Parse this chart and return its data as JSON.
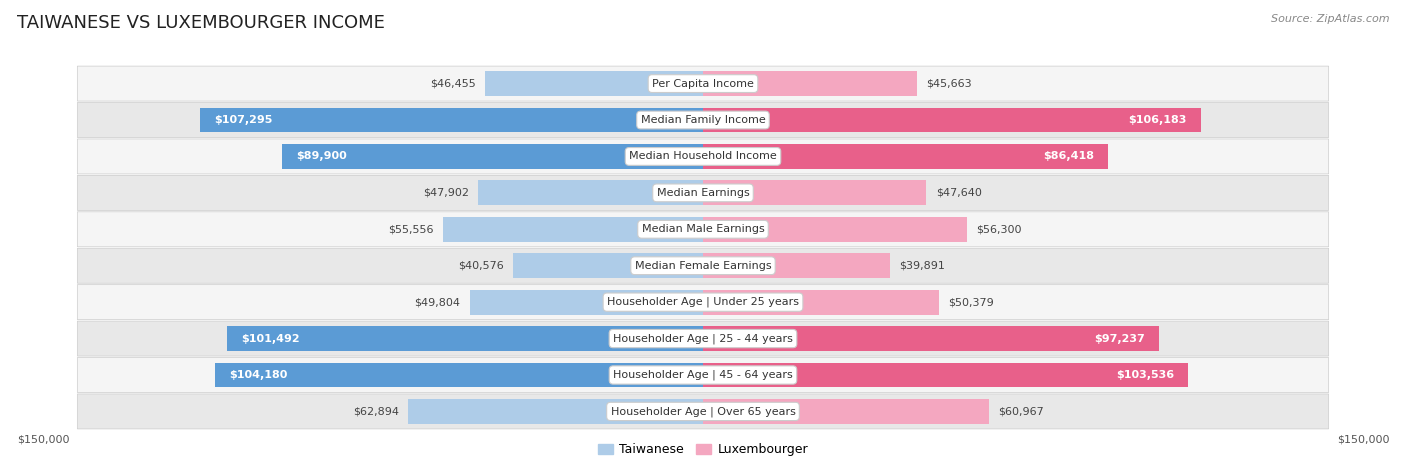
{
  "title": "TAIWANESE VS LUXEMBOURGER INCOME",
  "source": "Source: ZipAtlas.com",
  "categories": [
    "Per Capita Income",
    "Median Family Income",
    "Median Household Income",
    "Median Earnings",
    "Median Male Earnings",
    "Median Female Earnings",
    "Householder Age | Under 25 years",
    "Householder Age | 25 - 44 years",
    "Householder Age | 45 - 64 years",
    "Householder Age | Over 65 years"
  ],
  "taiwanese_values": [
    46455,
    107295,
    89900,
    47902,
    55556,
    40576,
    49804,
    101492,
    104180,
    62894
  ],
  "luxembourger_values": [
    45663,
    106183,
    86418,
    47640,
    56300,
    39891,
    50379,
    97237,
    103536,
    60967
  ],
  "tw_color_light": "#aecce8",
  "tw_color_dark": "#5b9bd5",
  "lx_color_light": "#f4a7c0",
  "lx_color_dark": "#e8608a",
  "row_bg_light": "#f5f5f5",
  "row_bg_dark": "#e8e8e8",
  "max_value": 150000,
  "label_inside_threshold": 75000,
  "title_fontsize": 13,
  "source_fontsize": 8,
  "category_fontsize": 8,
  "value_fontsize": 8,
  "legend_fontsize": 9,
  "background_color": "#ffffff"
}
